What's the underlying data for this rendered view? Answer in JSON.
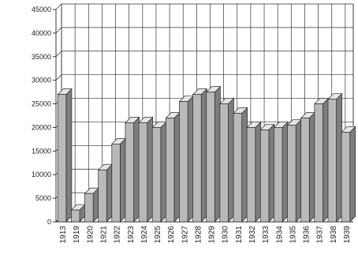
{
  "chart_data": {
    "type": "bar",
    "style": "3d-bar",
    "grid": true,
    "categories": [
      "1913",
      "1919",
      "1920",
      "1921",
      "1922",
      "1923",
      "1924",
      "1925",
      "1926",
      "1927",
      "1928",
      "1929",
      "1930",
      "1931",
      "1932",
      "1933",
      "1934",
      "1935",
      "1936",
      "1937",
      "1938",
      "1939"
    ],
    "values": [
      27000,
      2500,
      6000,
      11000,
      16500,
      21000,
      21000,
      20000,
      22000,
      25500,
      27000,
      27500,
      25000,
      23000,
      20000,
      19500,
      20000,
      20500,
      22000,
      25000,
      26000,
      19000
    ],
    "ylim": [
      0,
      45000
    ],
    "yticks": [
      0,
      5000,
      10000,
      15000,
      20000,
      25000,
      30000,
      35000,
      40000,
      45000
    ],
    "ytick_labels": [
      "0",
      "5000",
      "10000",
      "15000",
      "20000",
      "25000",
      "30000",
      "35000",
      "40000",
      "45000"
    ],
    "colors": {
      "front": "#b9b9b9",
      "side": "#7d7d7d",
      "top": "#e6e6e6",
      "edge": "#2a2a2a"
    }
  }
}
